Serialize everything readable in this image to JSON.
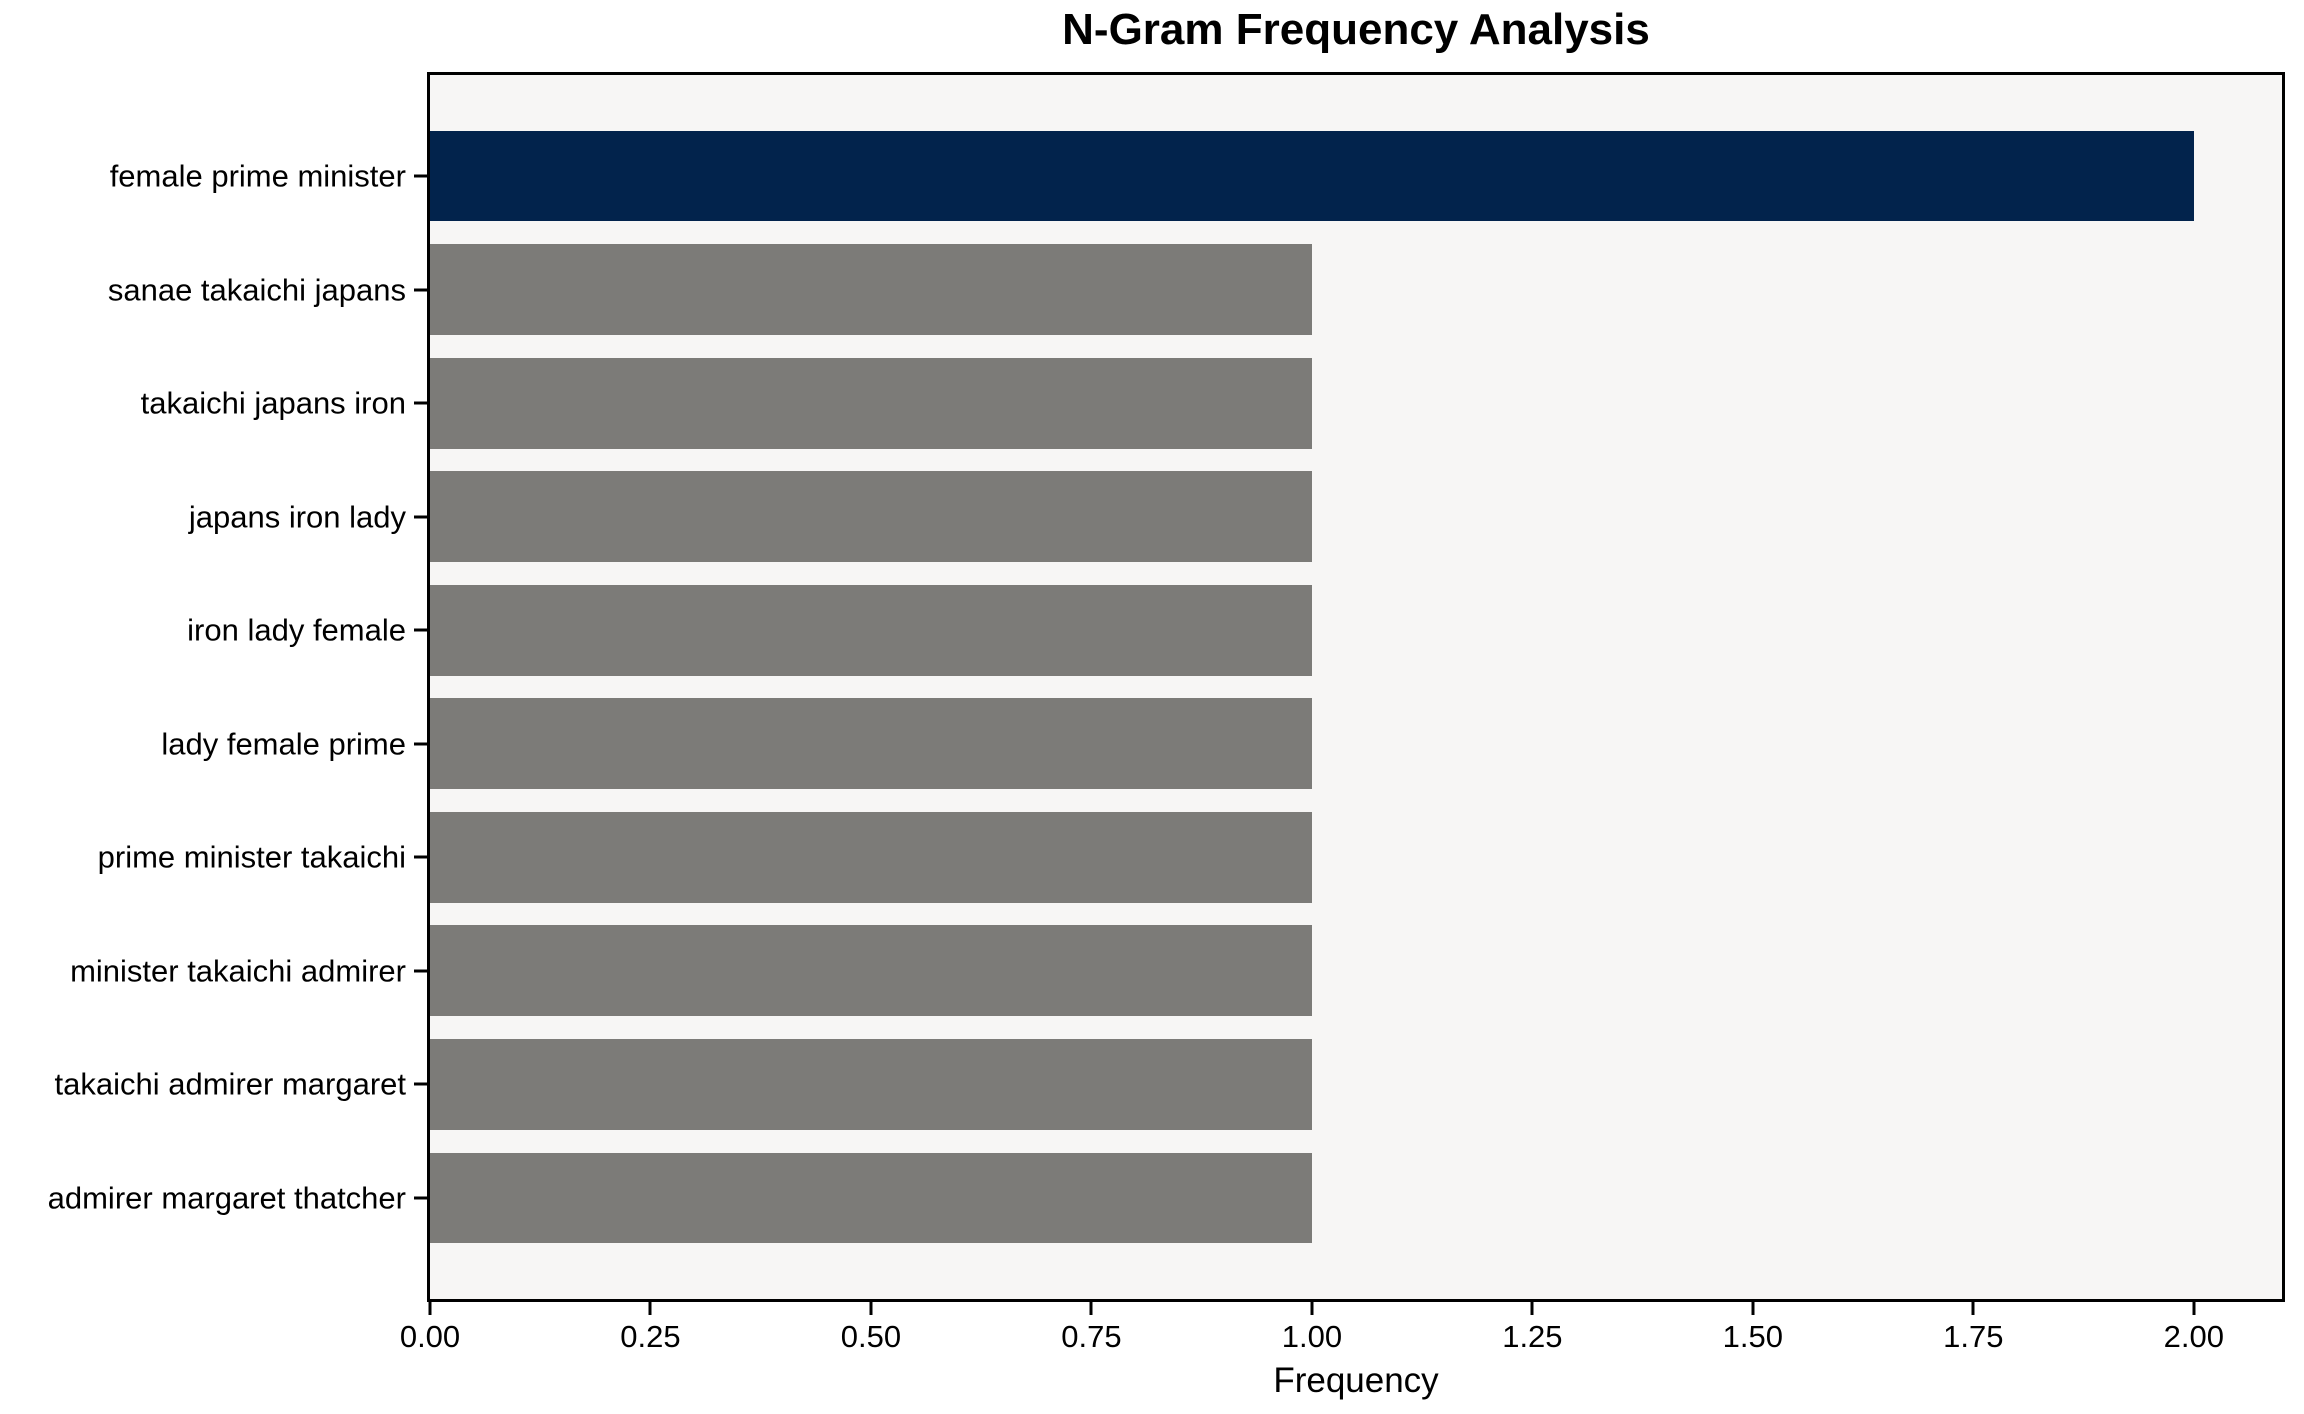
{
  "chart_data": {
    "type": "bar",
    "orientation": "horizontal",
    "title": "N-Gram Frequency Analysis",
    "xlabel": "Frequency",
    "ylabel": "",
    "categories": [
      "female prime minister",
      "sanae takaichi japans",
      "takaichi japans iron",
      "japans iron lady",
      "iron lady female",
      "lady female prime",
      "prime minister takaichi",
      "minister takaichi admirer",
      "takaichi admirer margaret",
      "admirer margaret thatcher"
    ],
    "values": [
      2,
      1,
      1,
      1,
      1,
      1,
      1,
      1,
      1,
      1
    ],
    "xlim": [
      0,
      2.1
    ],
    "xticks": {
      "values": [
        0,
        0.25,
        0.5,
        0.75,
        1.0,
        1.25,
        1.5,
        1.75,
        2.0
      ],
      "labels": [
        "0.00",
        "0.25",
        "0.50",
        "0.75",
        "1.00",
        "1.25",
        "1.50",
        "1.75",
        "2.00"
      ]
    },
    "bar_width": 0.8,
    "y_margin": 0.89,
    "grid": false,
    "bar_colors": [
      "#02234c",
      "#7c7b78",
      "#7c7b78",
      "#7c7b78",
      "#7c7b78",
      "#7c7b78",
      "#7c7b78",
      "#7c7b78",
      "#7c7b78",
      "#7c7b78"
    ],
    "colors": {
      "highlight_bar": "#02234c",
      "default_bar": "#7c7b78",
      "plot_background": "#f7f6f5",
      "figure_background": "#ffffff",
      "spine": "#000000",
      "text": "#000000"
    }
  }
}
